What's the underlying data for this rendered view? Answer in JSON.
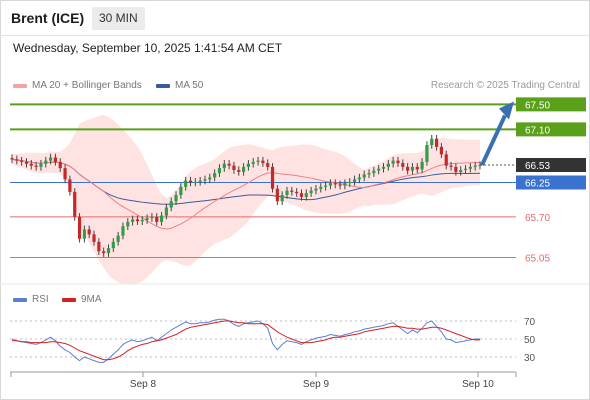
{
  "header": {
    "instrument": "Brent (ICE)",
    "timeframe": "30 MIN"
  },
  "datetime": "Wednesday, September 10, 2025 1:41:54 AM CET",
  "legend": {
    "bollinger_label": "MA 20 + Bollinger Bands",
    "ma50_label": "MA 50",
    "credit": "Research © 2025 Trading Central",
    "rsi_label": "RSI",
    "rsi_ma_label": "9MA"
  },
  "colors": {
    "ma20": "#f08080",
    "band_fill": "#ffd9d9",
    "ma50": "#3a5a9a",
    "up_candle": "#2f9e44",
    "down_candle": "#c62828",
    "resistance": "#5aa01a",
    "current": "#333333",
    "support_blue": "#3a72d0",
    "support_red": "#e56b6b",
    "arrow": "#3a6fb0",
    "rsi": "#5b7fd4",
    "rsi_ma": "#d42020"
  },
  "price_levels": [
    {
      "price": "67.50",
      "kind": "resistance"
    },
    {
      "price": "67.10",
      "kind": "resistance"
    },
    {
      "price": "66.53",
      "kind": "current"
    },
    {
      "price": "66.25",
      "kind": "pivot"
    },
    {
      "price": "65.70",
      "kind": "support"
    },
    {
      "price": "65.05",
      "kind": "support"
    }
  ],
  "rsi_axis": [
    "70",
    "50",
    "30"
  ],
  "x_axis": [
    "Sep 8",
    "Sep 9",
    "Sep 10"
  ],
  "chart_data": [
    {
      "type": "candlestick",
      "title": "Brent (ICE) 30 MIN",
      "y_unit": "USD",
      "ylim": [
        64.85,
        67.65
      ],
      "candles_close": [
        66.62,
        66.6,
        66.58,
        66.55,
        66.52,
        66.5,
        66.55,
        66.6,
        66.65,
        66.58,
        66.48,
        66.3,
        66.1,
        65.7,
        65.35,
        65.5,
        65.42,
        65.3,
        65.15,
        65.12,
        65.2,
        65.3,
        65.4,
        65.55,
        65.62,
        65.66,
        65.63,
        65.65,
        65.68,
        65.7,
        65.62,
        65.72,
        65.85,
        65.95,
        66.05,
        66.18,
        66.28,
        66.25,
        66.26,
        66.28,
        66.3,
        66.33,
        66.4,
        66.48,
        66.55,
        66.52,
        66.45,
        66.42,
        66.5,
        66.55,
        66.58,
        66.6,
        66.56,
        66.5,
        66.15,
        65.95,
        66.05,
        66.12,
        66.1,
        66.08,
        66.02,
        66.08,
        66.12,
        66.15,
        66.18,
        66.2,
        66.24,
        66.22,
        66.2,
        66.24,
        66.26,
        66.3,
        66.33,
        66.38,
        66.4,
        66.44,
        66.47,
        66.5,
        66.55,
        66.6,
        66.56,
        66.5,
        66.44,
        66.5,
        66.46,
        66.58,
        66.85,
        66.95,
        66.82,
        66.7,
        66.52,
        66.5,
        66.42,
        66.45,
        66.47,
        66.5,
        66.52,
        66.53
      ],
      "ma20_close_approx": "follows closes with 20-bar smoothing",
      "horizontal_levels": [
        67.5,
        67.1,
        66.53,
        66.25,
        65.7,
        65.05
      ]
    },
    {
      "type": "line",
      "title": "RSI",
      "ylim": [
        20,
        80
      ],
      "series": [
        {
          "name": "RSI",
          "values": [
            50,
            48,
            47,
            46,
            45,
            44,
            46,
            49,
            52,
            48,
            42,
            38,
            35,
            30,
            26,
            30,
            28,
            26,
            24,
            24,
            28,
            33,
            38,
            44,
            47,
            49,
            47,
            48,
            50,
            52,
            48,
            52,
            56,
            60,
            63,
            66,
            69,
            67,
            67,
            68,
            68,
            69,
            71,
            72,
            72,
            70,
            66,
            64,
            67,
            68,
            69,
            70,
            67,
            62,
            45,
            38,
            44,
            48,
            47,
            46,
            44,
            47,
            49,
            51,
            52,
            53,
            55,
            54,
            53,
            55,
            56,
            58,
            59,
            61,
            62,
            63,
            64,
            65,
            67,
            68,
            64,
            60,
            56,
            60,
            57,
            62,
            68,
            70,
            64,
            58,
            50,
            49,
            46,
            47,
            48,
            49,
            50,
            50
          ]
        },
        {
          "name": "9MA",
          "values": [
            48,
            48,
            47,
            47,
            46,
            46,
            46,
            46,
            47,
            47,
            46,
            45,
            43,
            40,
            37,
            35,
            33,
            31,
            29,
            27,
            27,
            28,
            30,
            33,
            37,
            40,
            42,
            44,
            45,
            47,
            48,
            49,
            51,
            53,
            55,
            58,
            61,
            63,
            64,
            65,
            66,
            67,
            68,
            69,
            70,
            70,
            69,
            68,
            68,
            67,
            67,
            67,
            67,
            66,
            62,
            58,
            55,
            52,
            50,
            48,
            46,
            46,
            46,
            47,
            48,
            49,
            51,
            52,
            52,
            53,
            54,
            55,
            56,
            58,
            59,
            60,
            61,
            62,
            63,
            64,
            64,
            63,
            62,
            62,
            61,
            61,
            62,
            63,
            63,
            62,
            60,
            58,
            56,
            54,
            52,
            50,
            49,
            49
          ]
        }
      ]
    }
  ]
}
